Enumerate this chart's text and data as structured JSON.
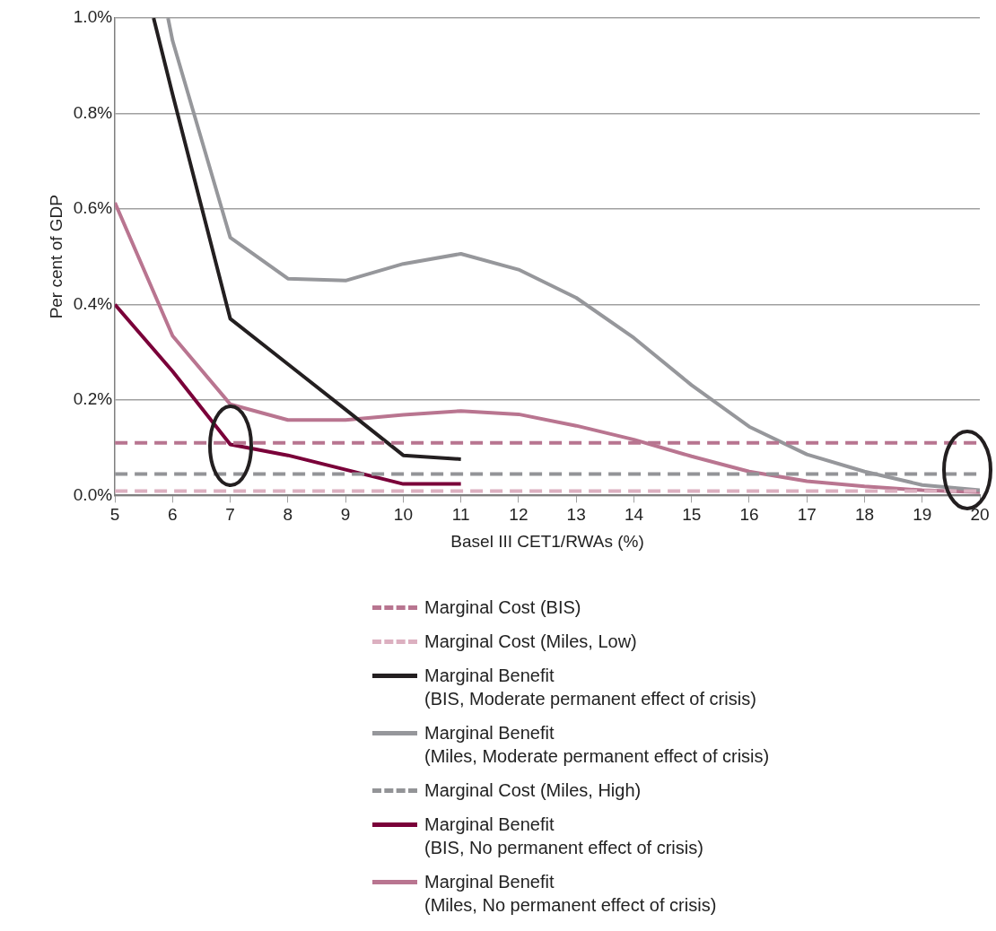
{
  "chart_data": {
    "type": "line",
    "xlabel": "Basel III CET1/RWAs (%)",
    "ylabel": "Per cent of GDP",
    "x": [
      5,
      6,
      7,
      8,
      9,
      10,
      11,
      12,
      13,
      14,
      15,
      16,
      17,
      18,
      19,
      20
    ],
    "xlim": [
      5,
      20
    ],
    "xticks": [
      5,
      6,
      7,
      8,
      9,
      10,
      11,
      12,
      13,
      14,
      15,
      16,
      17,
      18,
      19,
      20
    ],
    "ylim": [
      0,
      1
    ],
    "yticks": [
      {
        "value": 0,
        "label": "0.0%"
      },
      {
        "value": 0.2,
        "label": "0.2%"
      },
      {
        "value": 0.4,
        "label": "0.4%"
      },
      {
        "value": 0.6,
        "label": "0.6%"
      },
      {
        "value": 0.8,
        "label": "0.8%"
      },
      {
        "value": 1,
        "label": "1.0%"
      }
    ],
    "grid": "y",
    "legend": "bottom",
    "series": [
      {
        "name": "Marginal Cost (BIS)",
        "color": "#b87590",
        "line_style": "dashed",
        "values": [
          0.11,
          0.11,
          0.11,
          0.11,
          0.11,
          0.11,
          0.11,
          0.11,
          0.11,
          0.11,
          0.11,
          0.11,
          0.11,
          0.11,
          0.11,
          0.11
        ]
      },
      {
        "name": "Marginal Cost (Miles, Low)",
        "color": "#dcb0c0",
        "line_style": "dashed",
        "values": [
          0.009,
          0.009,
          0.009,
          0.009,
          0.009,
          0.009,
          0.009,
          0.009,
          0.009,
          0.009,
          0.009,
          0.009,
          0.009,
          0.009,
          0.009,
          0.009
        ]
      },
      {
        "name": "Marginal Benefit\n(BIS, Moderate permanent effect of crisis)",
        "color": "#231f20",
        "x": [
          5.67,
          6,
          7,
          8,
          9,
          10,
          11
        ],
        "values": [
          1,
          0.84,
          0.37,
          0.275,
          0.18,
          0.084,
          0.076
        ]
      },
      {
        "name": "Marginal Benefit\n(Miles, Moderate permanent effect of crisis)",
        "color": "#96979b",
        "x": [
          5.92,
          6,
          7,
          8,
          9,
          10,
          11,
          12,
          13,
          14,
          15,
          16,
          17,
          18,
          19,
          20
        ],
        "values": [
          1,
          0.952,
          0.54,
          0.454,
          0.45,
          0.485,
          0.506,
          0.473,
          0.414,
          0.33,
          0.231,
          0.144,
          0.086,
          0.05,
          0.022,
          0.011
        ]
      },
      {
        "name": "Marginal Cost (Miles, High)",
        "color": "#939497",
        "line_style": "dashed",
        "values": [
          0.045,
          0.045,
          0.045,
          0.045,
          0.045,
          0.045,
          0.045,
          0.045,
          0.045,
          0.045,
          0.045,
          0.045,
          0.045,
          0.045,
          0.045,
          0.045
        ]
      },
      {
        "name": "Marginal Benefit\n(BIS, No permanent effect of crisis)",
        "color": "#7a0039",
        "x": [
          5,
          6,
          7,
          8,
          9,
          10,
          11
        ],
        "values": [
          0.4,
          0.26,
          0.107,
          0.084,
          0.054,
          0.024,
          0.024
        ]
      },
      {
        "name": "Marginal Benefit\n(Miles, No permanent effect of crisis)",
        "color": "#b97590",
        "values": [
          0.613,
          0.334,
          0.191,
          0.158,
          0.158,
          0.169,
          0.177,
          0.17,
          0.146,
          0.117,
          0.082,
          0.05,
          0.03,
          0.019,
          0.011,
          0.007
        ]
      }
    ]
  }
}
